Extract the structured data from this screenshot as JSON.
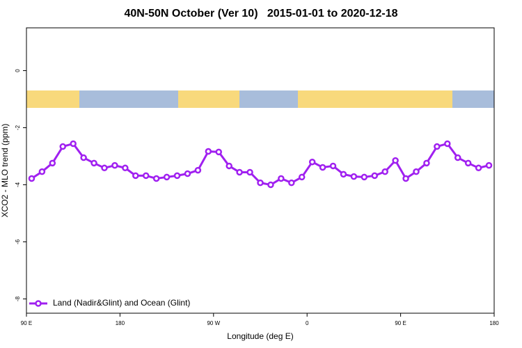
{
  "chart_data": {
    "type": "line",
    "title": "40N-50N October (Ver 10)   2015-01-01 to 2020-12-18",
    "x_label": "Longitude (deg E)",
    "y_label": "XCO2 - MLO trend (ppm)",
    "x": [
      95,
      105,
      115,
      125,
      135,
      145,
      155,
      165,
      175,
      185,
      195,
      205,
      215,
      225,
      235,
      245,
      255,
      265,
      275,
      285,
      295,
      305,
      315,
      325,
      335,
      345,
      355,
      365,
      375,
      385,
      395,
      405,
      415,
      425,
      435,
      445,
      455,
      465,
      475,
      485,
      495,
      505,
      515,
      525,
      535
    ],
    "series": [
      {
        "name": "Land (Nadir&Glint) and Ocean (Glint)",
        "color": "#a020f0",
        "values": [
          -3.78,
          -3.54,
          -3.24,
          -2.66,
          -2.56,
          -3.05,
          -3.24,
          -3.41,
          -3.32,
          -3.41,
          -3.68,
          -3.68,
          -3.78,
          -3.73,
          -3.68,
          -3.61,
          -3.49,
          -2.83,
          -2.85,
          -3.34,
          -3.56,
          -3.56,
          -3.93,
          -4.0,
          -3.78,
          -3.93,
          -3.73,
          -3.2,
          -3.39,
          -3.34,
          -3.63,
          -3.71,
          -3.73,
          -3.68,
          -3.54,
          -3.15,
          -3.78,
          -3.54,
          -3.24,
          -2.66,
          -2.56,
          -3.05,
          -3.24,
          -3.41,
          -3.32
        ]
      }
    ],
    "xlim": [
      90,
      540
    ],
    "xticks": [
      {
        "value": 90,
        "label": "90 E"
      },
      {
        "value": 180,
        "label": "180"
      },
      {
        "value": 270,
        "label": "90 W"
      },
      {
        "value": 360,
        "label": "0"
      },
      {
        "value": 450,
        "label": "90 E"
      },
      {
        "value": 540,
        "label": "180"
      }
    ],
    "ylim": [
      -8.5,
      1.5
    ],
    "yticks": [
      0,
      -2,
      -4,
      -6,
      -8
    ],
    "legend": "bottom-left"
  }
}
